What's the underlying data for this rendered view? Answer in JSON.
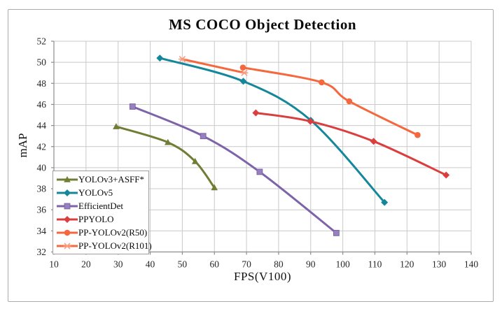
{
  "figure": {
    "title": "MS COCO Object Detection",
    "xlabel": "FPS(V100)",
    "ylabel": "mAP"
  },
  "chart_data": {
    "type": "line",
    "title": "MS COCO Object Detection",
    "xlabel": "FPS(V100)",
    "ylabel": "mAP",
    "xlim": [
      10,
      140
    ],
    "ylim": [
      32,
      52
    ],
    "x_ticks": [
      10,
      20,
      30,
      40,
      50,
      60,
      70,
      80,
      90,
      100,
      110,
      120,
      130,
      140
    ],
    "y_ticks": [
      32,
      34,
      36,
      38,
      40,
      42,
      44,
      46,
      48,
      50,
      52
    ],
    "grid": true,
    "smooth_lines": true,
    "legend_position": "inside-bottom-left",
    "colors": {
      "grid": "#c9c9c9",
      "axis": "#8c8c8c",
      "tick_text": "#262626"
    },
    "series": [
      {
        "name": "YOLOv3+ASFF*",
        "color": "#6f7d35",
        "marker": "triangle",
        "points": [
          [
            29.4,
            43.9
          ],
          [
            45.5,
            42.4
          ],
          [
            54.0,
            40.6
          ],
          [
            60.0,
            38.1
          ]
        ]
      },
      {
        "name": "YOLOv5",
        "color": "#15879b",
        "marker": "diamond",
        "points": [
          [
            43.0,
            50.4
          ],
          [
            69.0,
            48.2
          ],
          [
            90.0,
            44.5
          ],
          [
            113.0,
            36.7
          ]
        ]
      },
      {
        "name": "EfficientDet",
        "color": "#7e63a8",
        "marker": "square",
        "marker_fill": "#9780bf",
        "points": [
          [
            34.5,
            45.8
          ],
          [
            56.5,
            43.0
          ],
          [
            74.1,
            39.6
          ],
          [
            98.0,
            33.8
          ]
        ]
      },
      {
        "name": "PPYOLO",
        "color": "#db3e3e",
        "marker": "diamond",
        "points": [
          [
            72.9,
            45.2
          ],
          [
            89.9,
            44.4
          ],
          [
            109.6,
            42.5
          ],
          [
            132.2,
            39.3
          ]
        ]
      },
      {
        "name": "PP-YOLOv2(R50)",
        "color": "#f5683d",
        "marker": "circle",
        "points": [
          [
            68.9,
            49.5
          ],
          [
            93.4,
            48.1
          ],
          [
            102.0,
            46.3
          ],
          [
            123.3,
            43.1
          ]
        ]
      },
      {
        "name": "PP-YOLOv2(R101)",
        "color": "#f5683d",
        "marker": "x-star",
        "marker_fill": "#f89c7f",
        "points": [
          [
            50.0,
            50.3
          ],
          [
            69.3,
            49.0
          ]
        ]
      }
    ]
  }
}
